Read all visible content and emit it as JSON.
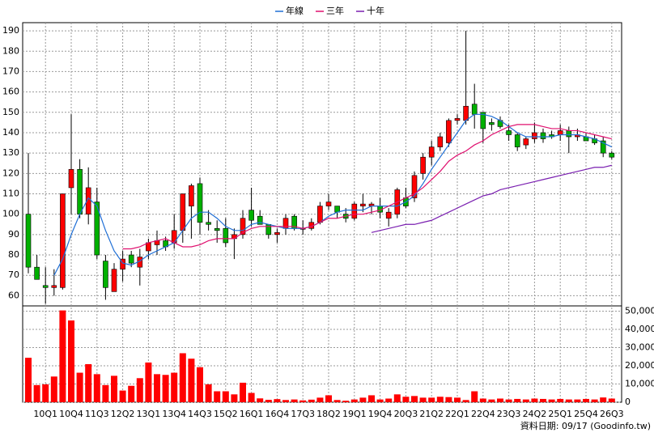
{
  "chart_data": {
    "type": "candlestick",
    "categories": [
      null,
      null,
      "10Q1",
      null,
      null,
      "10Q4",
      null,
      null,
      "11Q3",
      null,
      null,
      "12Q2",
      null,
      null,
      "13Q1",
      null,
      null,
      "13Q4",
      null,
      null,
      "14Q3",
      null,
      null,
      "15Q2",
      null,
      null,
      "16Q1",
      null,
      null,
      "16Q4",
      null,
      null,
      "17Q3",
      null,
      null,
      "18Q2",
      null,
      null,
      "19Q1",
      null,
      null,
      "19Q4",
      null,
      null,
      "20Q3",
      null,
      null,
      "21Q2",
      null,
      null,
      "22Q1",
      null,
      null,
      "22Q4",
      null,
      null,
      "23Q3",
      null,
      null,
      "24Q2",
      null,
      null,
      "25Q1",
      null,
      null,
      "25Q4",
      null,
      null,
      "26Q3"
    ],
    "open": [
      100,
      74,
      65,
      64,
      64,
      113,
      122,
      100,
      106,
      77,
      62,
      73,
      80,
      74,
      82,
      85,
      87,
      86,
      92,
      104,
      115,
      96,
      93,
      93,
      88,
      90,
      102,
      99,
      95,
      90,
      93,
      99,
      93,
      93,
      96,
      104,
      104,
      100,
      98,
      104,
      104,
      104,
      98,
      100,
      108,
      108,
      120,
      128,
      133,
      135,
      146,
      146,
      154,
      150,
      145,
      146,
      141,
      139,
      134,
      137,
      140,
      139,
      139,
      141,
      138,
      138,
      137,
      136,
      130
    ],
    "high": [
      130,
      80,
      74,
      73,
      110,
      149,
      127,
      123,
      113,
      80,
      76,
      82,
      82,
      83,
      88,
      92,
      89,
      100,
      110,
      115,
      118,
      102,
      97,
      98,
      93,
      102,
      113,
      102,
      95,
      93,
      100,
      100,
      97,
      98,
      106,
      110,
      104,
      103,
      106,
      110,
      106,
      108,
      103,
      113,
      113,
      121,
      130,
      136,
      140,
      147,
      149,
      190,
      164,
      150,
      147,
      148,
      144,
      140,
      138,
      145,
      142,
      141,
      144,
      143,
      142,
      140,
      139,
      138,
      131
    ],
    "low": [
      71,
      68,
      56,
      60,
      63,
      100,
      98,
      95,
      78,
      58,
      62,
      67,
      74,
      65,
      78,
      80,
      82,
      83,
      86,
      88,
      90,
      92,
      86,
      84,
      78,
      88,
      94,
      95,
      88,
      86,
      90,
      92,
      90,
      92,
      95,
      102,
      98,
      96,
      97,
      101,
      100,
      98,
      94,
      98,
      103,
      106,
      117,
      124,
      131,
      133,
      144,
      144,
      142,
      135,
      141,
      142,
      136,
      131,
      132,
      135,
      135,
      137,
      136,
      130,
      136,
      136,
      134,
      128,
      127
    ],
    "close": [
      74,
      68,
      64,
      65,
      110,
      122,
      100,
      113,
      80,
      64,
      73,
      78,
      76,
      79,
      86,
      87,
      84,
      92,
      110,
      114,
      96,
      95,
      92,
      86,
      90,
      98,
      97,
      95,
      90,
      91,
      98,
      93,
      93,
      96,
      104,
      106,
      101,
      98,
      105,
      105,
      105,
      101,
      101,
      112,
      104,
      119,
      128,
      133,
      138,
      146,
      147,
      153,
      149,
      142,
      144,
      143,
      139,
      133,
      137,
      140,
      137,
      138,
      141,
      138,
      139,
      136,
      135,
      130,
      128
    ],
    "up_color": "#ff0000",
    "down_color": "#00b000",
    "volume": [
      24400,
      9400,
      9800,
      14100,
      50400,
      44900,
      16200,
      20900,
      15400,
      9400,
      14500,
      6400,
      9000,
      13200,
      21800,
      15400,
      15000,
      16200,
      26900,
      23900,
      19200,
      9800,
      6000,
      6000,
      4300,
      10700,
      5100,
      2100,
      1300,
      1700,
      1200,
      1500,
      1000,
      1400,
      2500,
      3800,
      1200,
      800,
      1500,
      2500,
      3800,
      1500,
      2000,
      4300,
      3000,
      3400,
      2500,
      2500,
      3000,
      2800,
      2500,
      1200,
      6000,
      2000,
      1500,
      2000,
      1500,
      1800,
      1500,
      2000,
      1800,
      1500,
      1800,
      1500,
      1500,
      1800,
      1500,
      2600,
      2000
    ],
    "volume_color": "#ff0000",
    "lines": [
      {
        "name": "年線",
        "color": "#1f6fd6",
        "values": [
          null,
          null,
          null,
          70,
          78,
          90,
          100,
          108,
          104,
          92,
          82,
          76,
          75,
          77,
          80,
          82,
          84,
          86,
          92,
          98,
          101,
          101,
          98,
          94,
          92,
          92,
          95,
          96,
          95,
          94,
          93,
          93,
          93,
          94,
          96,
          99,
          101,
          102,
          102,
          102,
          104,
          104,
          104,
          104,
          106,
          109,
          115,
          122,
          128,
          134,
          140,
          146,
          149,
          149,
          148,
          146,
          143,
          140,
          138,
          138,
          138,
          138,
          139,
          139,
          139,
          138,
          137,
          135,
          133
        ]
      },
      {
        "name": "三年",
        "color": "#e0106f",
        "values": [
          null,
          null,
          null,
          null,
          null,
          null,
          null,
          null,
          null,
          null,
          null,
          83,
          83,
          84,
          86,
          87,
          88,
          86,
          84,
          84,
          85,
          87,
          88,
          88,
          88,
          91,
          93,
          94,
          94,
          94,
          94,
          94,
          93,
          94,
          96,
          98,
          98,
          99,
          100,
          100,
          101,
          102,
          104,
          106,
          108,
          110,
          113,
          117,
          121,
          126,
          129,
          131,
          134,
          136,
          139,
          141,
          143,
          144,
          144,
          144,
          143,
          142,
          142,
          141,
          141,
          140,
          139,
          138,
          137
        ]
      },
      {
        "name": "十年",
        "color": "#7a1fb0",
        "values": [
          null,
          null,
          null,
          null,
          null,
          null,
          null,
          null,
          null,
          null,
          null,
          null,
          null,
          null,
          null,
          null,
          null,
          null,
          null,
          null,
          null,
          null,
          null,
          null,
          null,
          null,
          null,
          null,
          null,
          null,
          null,
          null,
          null,
          null,
          null,
          null,
          null,
          null,
          null,
          null,
          91,
          92,
          93,
          94,
          95,
          95,
          96,
          97,
          99,
          101,
          103,
          105,
          107,
          109,
          110,
          112,
          113,
          114,
          115,
          116,
          117,
          118,
          119,
          120,
          121,
          122,
          123,
          123,
          124
        ]
      }
    ],
    "ylim": [
      55,
      194
    ],
    "yticks": [
      60,
      70,
      80,
      90,
      100,
      110,
      120,
      130,
      140,
      150,
      160,
      170,
      180,
      190
    ],
    "y2lim": [
      0,
      52000
    ],
    "y2ticks": [
      0,
      {
        "value": 10000,
        "label": "10,000"
      },
      {
        "value": 20000,
        "label": "20,000"
      },
      {
        "value": 30000,
        "label": "30,000"
      },
      {
        "value": 40000,
        "label": "40,000"
      },
      {
        "value": 50000,
        "label": "50,000"
      }
    ],
    "grid": true,
    "source": "資料日期: 09/17 (Goodinfo.tw)"
  }
}
